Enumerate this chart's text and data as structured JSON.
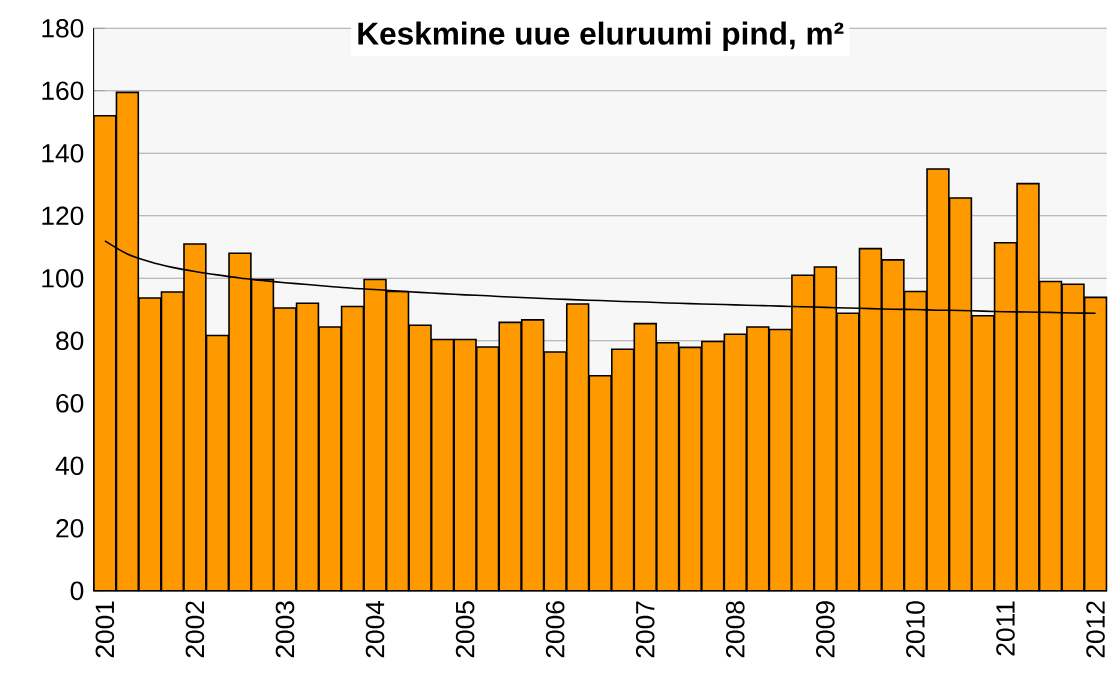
{
  "chart_data": {
    "type": "bar",
    "title": "Keskmine uue eluruumi pind, m²",
    "categories": [
      "2001",
      null,
      null,
      null,
      "2002",
      null,
      null,
      null,
      "2003",
      null,
      null,
      null,
      "2004",
      null,
      null,
      null,
      "2005",
      null,
      null,
      null,
      "2006",
      null,
      null,
      null,
      "2007",
      null,
      null,
      null,
      "2008",
      null,
      null,
      null,
      "2009",
      null,
      null,
      null,
      "2010",
      null,
      null,
      null,
      "2011",
      null,
      null,
      null,
      "2012"
    ],
    "series": [
      {
        "color": "#ff9900",
        "values": [
          152,
          159.5,
          93.7,
          95.6,
          111,
          81.7,
          108,
          99.6,
          90.5,
          92,
          84.4,
          91,
          99.6,
          95.8,
          85,
          80.4,
          80.4,
          78,
          85.9,
          86.7,
          76.4,
          91.8,
          68.8,
          77.3,
          85.5,
          79.4,
          77.9,
          79.8,
          82.1,
          84.4,
          83.6,
          101,
          103.6,
          88.8,
          109.5,
          105.9,
          95.8,
          135,
          125.7,
          88,
          111.4,
          130.3,
          99,
          98.1,
          93.9
        ]
      },
      {
        "type": "line",
        "color": "#000000",
        "values": [
          112.0,
          107.8,
          105.3,
          103.5,
          102.2,
          101.1,
          100.1,
          99.3,
          98.6,
          98.0,
          97.4,
          96.8,
          96.4,
          95.9,
          95.5,
          95.1,
          94.7,
          94.4,
          94.0,
          93.7,
          93.4,
          93.1,
          92.9,
          92.6,
          92.4,
          92.1,
          91.9,
          91.7,
          91.5,
          91.3,
          91.1,
          90.9,
          90.7,
          90.5,
          90.3,
          90.1,
          90.0,
          89.8,
          89.7,
          89.5,
          89.3,
          89.2,
          89.1,
          88.9,
          88.8
        ]
      }
    ],
    "ylim": [
      0,
      180
    ],
    "yticks": [
      0,
      20,
      40,
      60,
      80,
      100,
      120,
      140,
      160,
      180
    ],
    "grid": "y"
  }
}
